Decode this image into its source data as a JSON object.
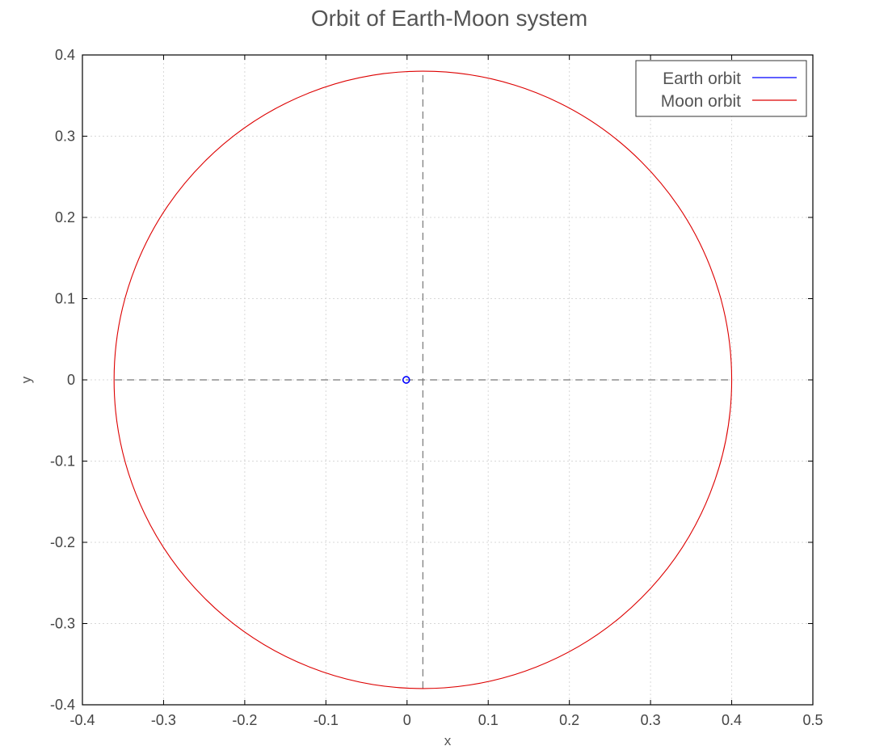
{
  "chart_data": {
    "type": "line",
    "title": "Orbit of Earth-Moon system",
    "xlabel": "x",
    "ylabel": "y",
    "xlim": [
      -0.4,
      0.5
    ],
    "ylim": [
      -0.4,
      0.4
    ],
    "xticks": [
      "-0.4",
      "-0.3",
      "-0.2",
      "-0.1",
      "0",
      "0.1",
      "0.2",
      "0.3",
      "0.4",
      "0.5"
    ],
    "yticks": [
      "0.4",
      "0.3",
      "0.2",
      "0.1",
      "0",
      "-0.1",
      "-0.2",
      "-0.3",
      "-0.4"
    ],
    "grid": true,
    "legend_position": "top-right",
    "series": [
      {
        "name": "Earth orbit",
        "color": "#0000ff",
        "shape": "circle",
        "center": [
          -0.001,
          0.0
        ],
        "radius": 0.004
      },
      {
        "name": "Moon orbit",
        "color": "#dd0000",
        "shape": "ellipse",
        "center": [
          0.0195,
          0.0
        ],
        "semi_axis_x": 0.3805,
        "semi_axis_y": 0.38
      }
    ],
    "reference_lines": [
      {
        "orientation": "horizontal",
        "y": 0.0,
        "x_from": -0.36,
        "x_to": 0.4,
        "style": "dashed",
        "color": "#777777"
      },
      {
        "orientation": "vertical",
        "x": 0.0195,
        "y_from": -0.38,
        "y_to": 0.38,
        "style": "dashed",
        "color": "#777777"
      }
    ]
  }
}
